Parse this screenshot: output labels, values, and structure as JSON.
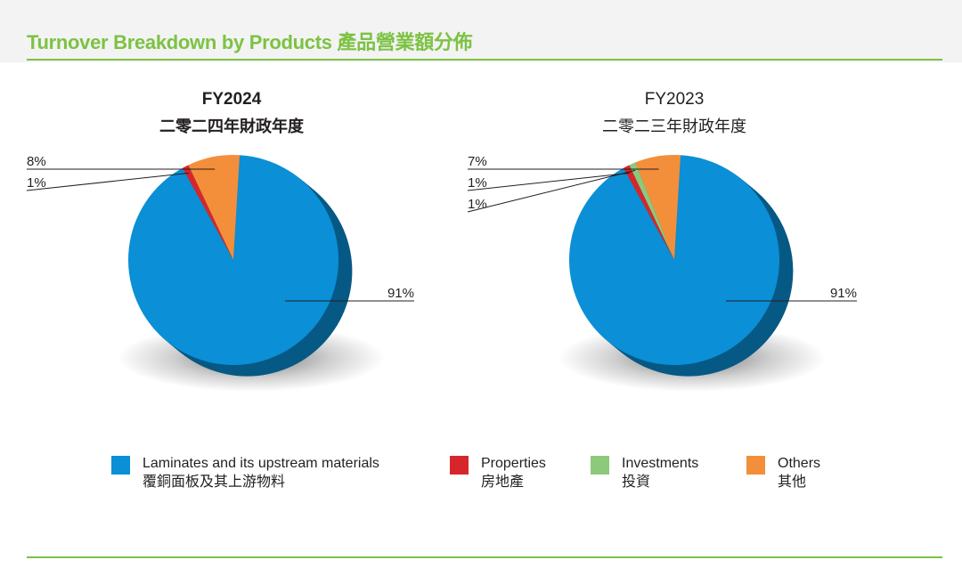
{
  "header": {
    "title": "Turnover Breakdown by Products 產品營業額分佈"
  },
  "colors": {
    "accent": "#7cc243",
    "laminates": "#0b8fd6",
    "properties": "#d7262b",
    "investments": "#8cc97a",
    "others": "#f38f3b"
  },
  "chart_data": [
    {
      "type": "pie",
      "title": "FY2024",
      "subtitle": "二零二四年財政年度",
      "categories": [
        "Laminates and its upstream materials",
        "Properties",
        "Investments",
        "Others"
      ],
      "values": [
        91,
        1,
        0,
        8
      ],
      "labels": [
        "91%",
        "1%",
        "",
        "8%"
      ]
    },
    {
      "type": "pie",
      "title": "FY2023",
      "subtitle": "二零二三年財政年度",
      "categories": [
        "Laminates and its upstream materials",
        "Properties",
        "Investments",
        "Others"
      ],
      "values": [
        91,
        1,
        1,
        7
      ],
      "labels": [
        "91%",
        "1%",
        "1%",
        "7%"
      ]
    }
  ],
  "legend": [
    {
      "name": "Laminates and its upstream materials",
      "name_zh": "覆銅面板及其上游物料",
      "color": "#0b8fd6"
    },
    {
      "name": "Properties",
      "name_zh": "房地產",
      "color": "#d7262b"
    },
    {
      "name": "Investments",
      "name_zh": "投資",
      "color": "#8cc97a"
    },
    {
      "name": "Others",
      "name_zh": "其他",
      "color": "#f38f3b"
    }
  ]
}
